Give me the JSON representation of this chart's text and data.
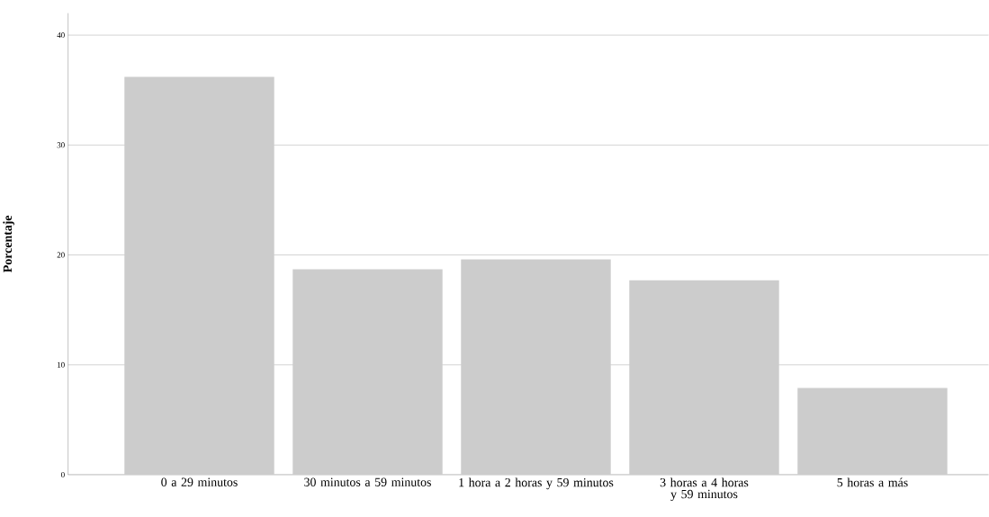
{
  "chart_data": {
    "type": "bar",
    "ylabel": "Porcentaje",
    "categories": [
      "0 a 29 minutos",
      "30 minutos a 59 minutos",
      "1 hora a 2 horas y 59 minutos",
      "3 horas a 4 horas y 59 minutos",
      "5 horas a más"
    ],
    "values": [
      36.2,
      18.7,
      19.6,
      17.7,
      7.9
    ],
    "color": "#cccccc",
    "ylim": [
      0,
      42
    ],
    "yticks": [
      0,
      10,
      20,
      30,
      40
    ],
    "grid": "y"
  }
}
